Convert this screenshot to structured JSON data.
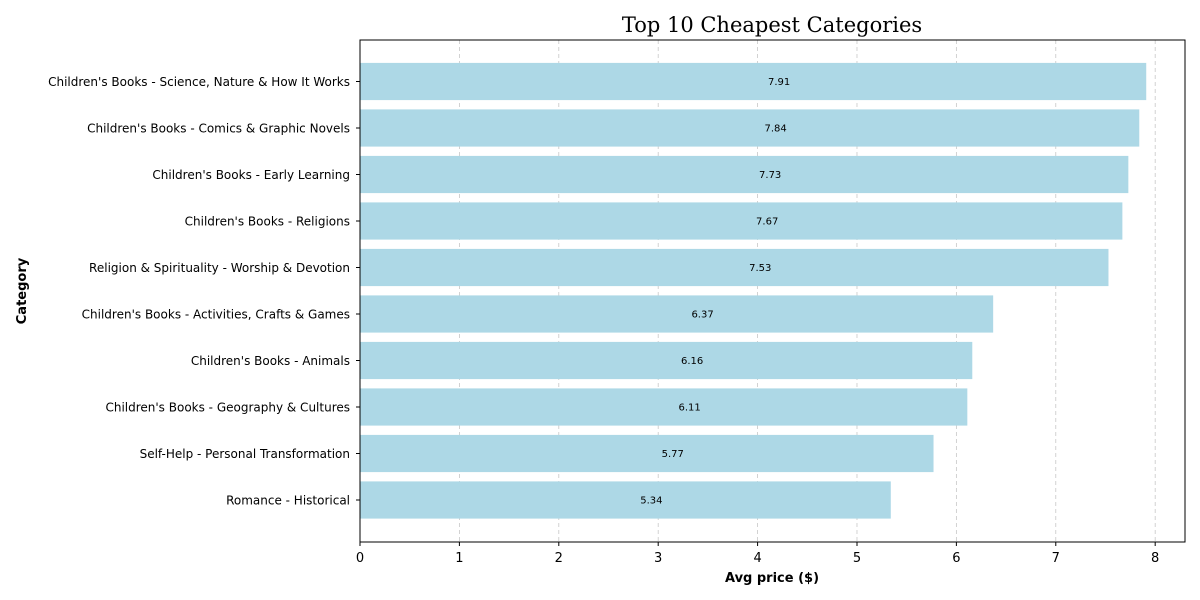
{
  "chart_data": {
    "type": "bar",
    "orientation": "horizontal",
    "title": "Top 10 Cheapest Categories",
    "xlabel": "Avg price ($)",
    "ylabel": "Category",
    "xlim": [
      0,
      8.3
    ],
    "xticks": [
      "0",
      "1",
      "2",
      "3",
      "4",
      "5",
      "6",
      "7",
      "8"
    ],
    "grid": "x-axis dashed",
    "bar_color": "#add8e6",
    "categories": [
      "Children's Books - Science, Nature & How It Works",
      "Children's Books - Comics & Graphic Novels",
      "Children's Books - Early Learning",
      "Children's Books - Religions",
      "Religion & Spirituality - Worship & Devotion",
      "Children's Books - Activities, Crafts & Games",
      "Children's Books - Animals",
      "Children's Books - Geography & Cultures",
      "Self-Help - Personal Transformation",
      "Romance - Historical"
    ],
    "values": [
      7.91,
      7.84,
      7.73,
      7.67,
      7.53,
      6.37,
      6.16,
      6.11,
      5.77,
      5.34
    ],
    "data_labels": [
      "7.91",
      "7.84",
      "7.73",
      "7.67",
      "7.53",
      "6.37",
      "6.16",
      "6.11",
      "5.77",
      "5.34"
    ]
  }
}
